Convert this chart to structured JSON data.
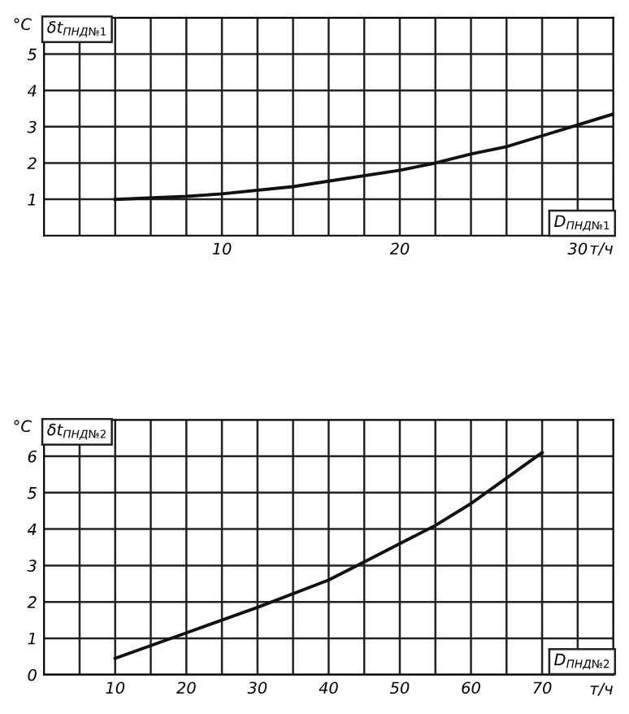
{
  "chart_data": [
    {
      "type": "line",
      "ylabel": "°C",
      "xlabel": "т/ч",
      "annotations": [
        "δt$_{ПНД№1}$",
        "D$_{ПНД№1}$"
      ],
      "x": [
        4,
        8,
        10,
        14,
        16,
        20,
        22,
        24,
        26,
        28,
        30,
        32
      ],
      "series": [
        {
          "color": "#111111",
          "values": [
            1.0,
            1.08,
            1.15,
            1.35,
            1.5,
            1.8,
            2.0,
            2.25,
            2.45,
            2.75,
            3.05,
            3.35
          ]
        }
      ],
      "xlim": [
        0,
        32
      ],
      "ylim": [
        0,
        6
      ],
      "xticks": [
        {
          "value": 2,
          "label": null
        },
        {
          "value": 4,
          "label": null
        },
        {
          "value": 6,
          "label": null
        },
        {
          "value": 8,
          "label": null
        },
        10,
        {
          "value": 12,
          "label": null
        },
        {
          "value": 14,
          "label": null
        },
        {
          "value": 16,
          "label": null
        },
        {
          "value": 18,
          "label": null
        },
        20,
        {
          "value": 22,
          "label": null
        },
        {
          "value": 24,
          "label": null
        },
        {
          "value": 26,
          "label": null
        },
        {
          "value": 28,
          "label": null
        },
        30
      ],
      "yticks": [
        1,
        2,
        3,
        4,
        5
      ],
      "grid": true,
      "line_style": "solid"
    },
    {
      "type": "line",
      "ylabel": "°C",
      "xlabel": "т/ч",
      "annotations": [
        "δt$_{ПНД№2}$",
        "D$_{ПНД№2}$"
      ],
      "x": [
        10,
        20,
        30,
        40,
        45,
        50,
        55,
        60,
        65,
        70
      ],
      "series": [
        {
          "color": "#111111",
          "values": [
            0.45,
            1.15,
            1.85,
            2.6,
            3.1,
            3.6,
            4.1,
            4.7,
            5.4,
            6.1
          ]
        }
      ],
      "xlim": [
        0,
        80
      ],
      "ylim": [
        0,
        7
      ],
      "xticks": [
        {
          "value": 5,
          "label": null
        },
        10,
        {
          "value": 15,
          "label": null
        },
        20,
        {
          "value": 25,
          "label": null
        },
        30,
        {
          "value": 35,
          "label": null
        },
        40,
        {
          "value": 45,
          "label": null
        },
        50,
        {
          "value": 55,
          "label": null
        },
        60,
        {
          "value": 65,
          "label": null
        },
        70,
        {
          "value": 75,
          "label": null
        }
      ],
      "yticks": [
        0,
        1,
        2,
        3,
        4,
        5,
        6
      ],
      "grid": true,
      "line_style": "solid"
    }
  ]
}
